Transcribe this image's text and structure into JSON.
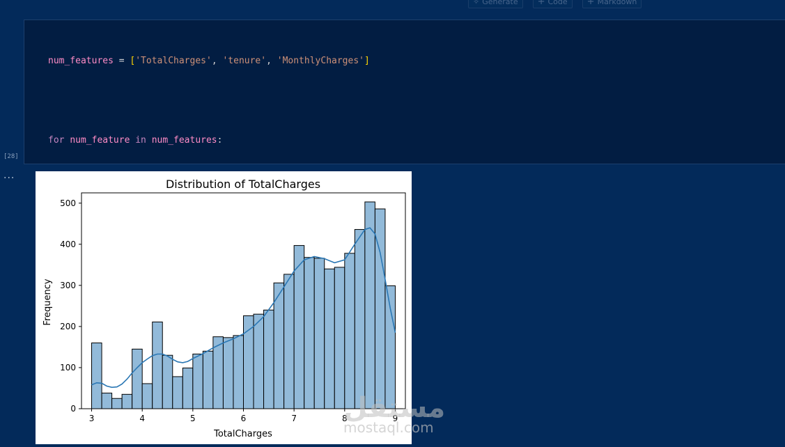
{
  "toolbar": {
    "generate_label": "Generate",
    "code_label": "Code",
    "markdown_label": "Markdown"
  },
  "cell": {
    "execution_count": "[28]",
    "output_menu": "..."
  },
  "watermark": {
    "arabic": "مستقل",
    "latin": "mostaql.com"
  },
  "chart_data": {
    "type": "bar",
    "title": "Distribution of TotalCharges",
    "xlabel": "TotalCharges",
    "ylabel": "Frequency",
    "xlim": [
      2.8,
      9.2
    ],
    "ylim": [
      0,
      525
    ],
    "xticks": [
      3,
      4,
      5,
      6,
      7,
      8,
      9
    ],
    "yticks": [
      0,
      100,
      200,
      300,
      400,
      500
    ],
    "bar_color": "#92bad9",
    "kde_color": "#2a77b4",
    "bins": [
      {
        "x0": 3.0,
        "x1": 3.2,
        "count": 160
      },
      {
        "x0": 3.2,
        "x1": 3.4,
        "count": 38
      },
      {
        "x0": 3.4,
        "x1": 3.6,
        "count": 25
      },
      {
        "x0": 3.6,
        "x1": 3.8,
        "count": 35
      },
      {
        "x0": 3.8,
        "x1": 4.0,
        "count": 145
      },
      {
        "x0": 4.0,
        "x1": 4.2,
        "count": 61
      },
      {
        "x0": 4.2,
        "x1": 4.4,
        "count": 211
      },
      {
        "x0": 4.4,
        "x1": 4.6,
        "count": 130
      },
      {
        "x0": 4.6,
        "x1": 4.8,
        "count": 78
      },
      {
        "x0": 4.8,
        "x1": 5.0,
        "count": 99
      },
      {
        "x0": 5.0,
        "x1": 5.2,
        "count": 133
      },
      {
        "x0": 5.2,
        "x1": 5.4,
        "count": 140
      },
      {
        "x0": 5.4,
        "x1": 5.6,
        "count": 175
      },
      {
        "x0": 5.6,
        "x1": 5.8,
        "count": 173
      },
      {
        "x0": 5.8,
        "x1": 6.0,
        "count": 178
      },
      {
        "x0": 6.0,
        "x1": 6.2,
        "count": 226
      },
      {
        "x0": 6.2,
        "x1": 6.4,
        "count": 230
      },
      {
        "x0": 6.4,
        "x1": 6.6,
        "count": 240
      },
      {
        "x0": 6.6,
        "x1": 6.8,
        "count": 306
      },
      {
        "x0": 6.8,
        "x1": 7.0,
        "count": 327
      },
      {
        "x0": 7.0,
        "x1": 7.2,
        "count": 397
      },
      {
        "x0": 7.2,
        "x1": 7.4,
        "count": 368
      },
      {
        "x0": 7.4,
        "x1": 7.6,
        "count": 366
      },
      {
        "x0": 7.6,
        "x1": 7.8,
        "count": 340
      },
      {
        "x0": 7.8,
        "x1": 8.0,
        "count": 344
      },
      {
        "x0": 8.0,
        "x1": 8.2,
        "count": 378
      },
      {
        "x0": 8.2,
        "x1": 8.4,
        "count": 436
      },
      {
        "x0": 8.4,
        "x1": 8.6,
        "count": 503
      },
      {
        "x0": 8.6,
        "x1": 8.8,
        "count": 486
      },
      {
        "x0": 8.8,
        "x1": 9.0,
        "count": 299
      }
    ],
    "kde": [
      [
        3.0,
        58
      ],
      [
        3.1,
        63
      ],
      [
        3.2,
        62
      ],
      [
        3.3,
        55
      ],
      [
        3.4,
        52
      ],
      [
        3.5,
        53
      ],
      [
        3.6,
        60
      ],
      [
        3.7,
        72
      ],
      [
        3.8,
        87
      ],
      [
        3.9,
        100
      ],
      [
        4.0,
        112
      ],
      [
        4.1,
        121
      ],
      [
        4.2,
        129
      ],
      [
        4.3,
        133
      ],
      [
        4.4,
        133
      ],
      [
        4.5,
        128
      ],
      [
        4.6,
        120
      ],
      [
        4.7,
        114
      ],
      [
        4.8,
        112
      ],
      [
        4.9,
        115
      ],
      [
        5.0,
        122
      ],
      [
        5.2,
        134
      ],
      [
        5.4,
        148
      ],
      [
        5.6,
        160
      ],
      [
        5.8,
        170
      ],
      [
        6.0,
        182
      ],
      [
        6.2,
        200
      ],
      [
        6.4,
        224
      ],
      [
        6.6,
        258
      ],
      [
        6.8,
        296
      ],
      [
        7.0,
        335
      ],
      [
        7.2,
        362
      ],
      [
        7.4,
        370
      ],
      [
        7.6,
        365
      ],
      [
        7.8,
        355
      ],
      [
        8.0,
        362
      ],
      [
        8.2,
        400
      ],
      [
        8.4,
        436
      ],
      [
        8.5,
        440
      ],
      [
        8.6,
        425
      ],
      [
        8.7,
        380
      ],
      [
        8.8,
        315
      ],
      [
        8.9,
        245
      ],
      [
        9.0,
        185
      ]
    ]
  }
}
